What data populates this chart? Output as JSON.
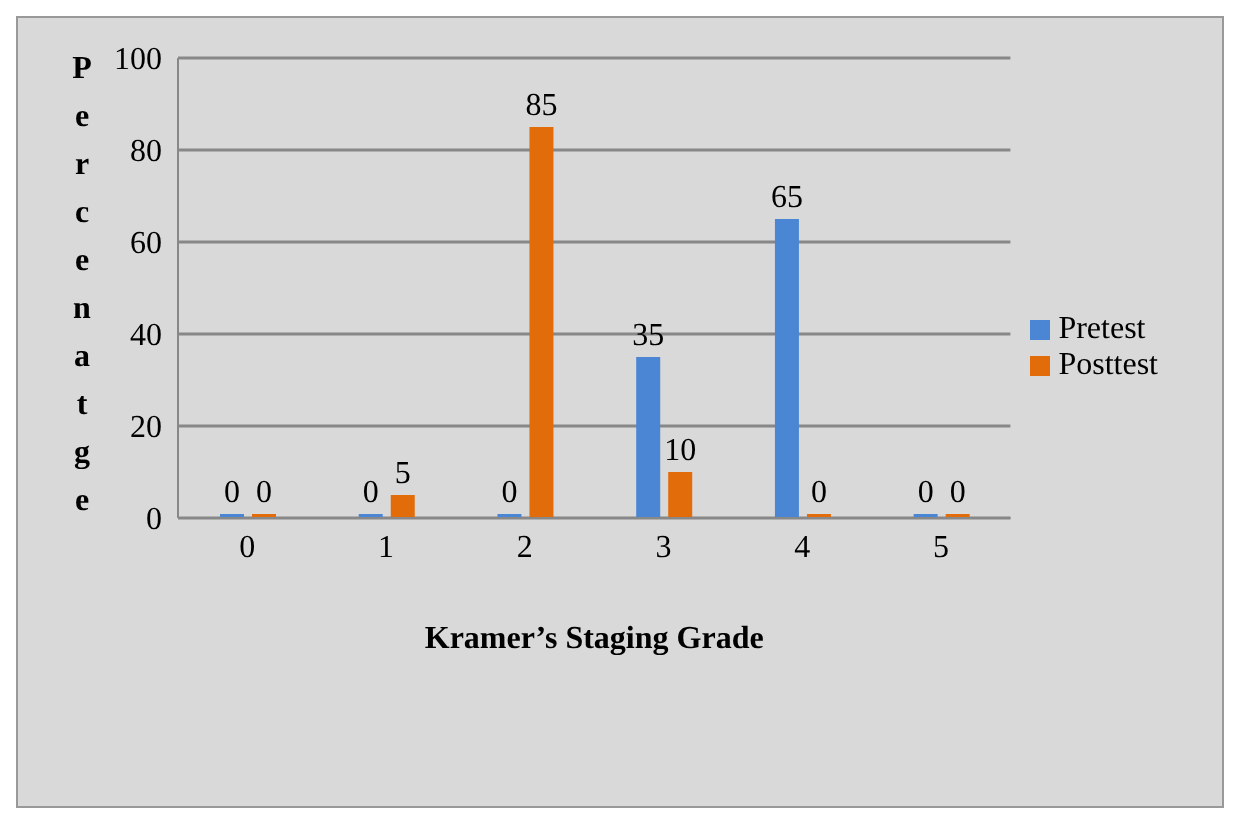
{
  "chart_data": {
    "type": "bar",
    "xlabel": "Kramer’s Staging Grade",
    "ylabel": "Percenatge",
    "categories": [
      "0",
      "1",
      "2",
      "3",
      "4",
      "5"
    ],
    "series": [
      {
        "name": "Pretest",
        "color": "#4a86d4",
        "values": [
          0,
          0,
          0,
          35,
          65,
          0
        ]
      },
      {
        "name": "Posttest",
        "color": "#e36c0a",
        "values": [
          0,
          5,
          85,
          10,
          0,
          0
        ]
      }
    ],
    "ylim": [
      0,
      100
    ],
    "yticks": [
      0,
      20,
      40,
      60,
      80,
      100
    ],
    "grid": "y",
    "legend": "right",
    "data_labels": true
  }
}
